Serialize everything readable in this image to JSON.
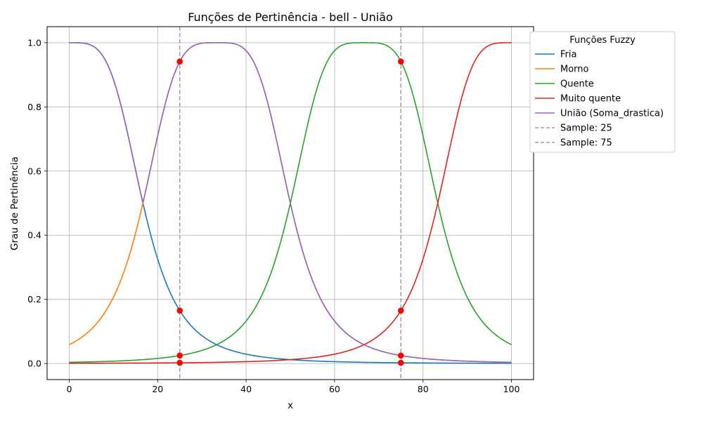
{
  "chart_data": {
    "type": "line",
    "title": "Funções de Pertinência - bell - União",
    "xlabel": "x",
    "ylabel": "Grau de Pertinência",
    "xlim": [
      -5,
      105
    ],
    "ylim": [
      -0.05,
      1.05
    ],
    "xticks": [
      0,
      20,
      40,
      60,
      80,
      100
    ],
    "yticks": [
      0.0,
      0.2,
      0.4,
      0.6,
      0.8,
      1.0
    ],
    "xtick_labels": [
      "0",
      "20",
      "40",
      "60",
      "80",
      "100"
    ],
    "ytick_labels": [
      "0.0",
      "0.2",
      "0.4",
      "0.6",
      "0.8",
      "1.0"
    ],
    "grid": true,
    "legend": {
      "title": "Funções Fuzzy",
      "placement": "outside-upper-right"
    },
    "series": [
      {
        "name": "Fria",
        "color": "#1f77b4",
        "kind": "bell",
        "a": 16.67,
        "b": 2,
        "c": 0
      },
      {
        "name": "Morno",
        "color": "#ff7f0e",
        "kind": "bell",
        "a": 16.67,
        "b": 2,
        "c": 33.33
      },
      {
        "name": "Quente",
        "color": "#2ca02c",
        "kind": "bell",
        "a": 16.67,
        "b": 2,
        "c": 66.67
      },
      {
        "name": "Muito quente",
        "color": "#d62728",
        "kind": "bell",
        "a": 16.67,
        "b": 2,
        "c": 100
      },
      {
        "name": "União (Soma_drastica)",
        "color": "#9467bd",
        "kind": "union",
        "of": [
          0,
          1
        ]
      }
    ],
    "samples": [
      {
        "name": "Sample: 25",
        "x": 25
      },
      {
        "name": "Sample: 75",
        "x": 75
      }
    ],
    "sample_line_color": "#a0a0a0",
    "marker_color": "#ff0000"
  }
}
